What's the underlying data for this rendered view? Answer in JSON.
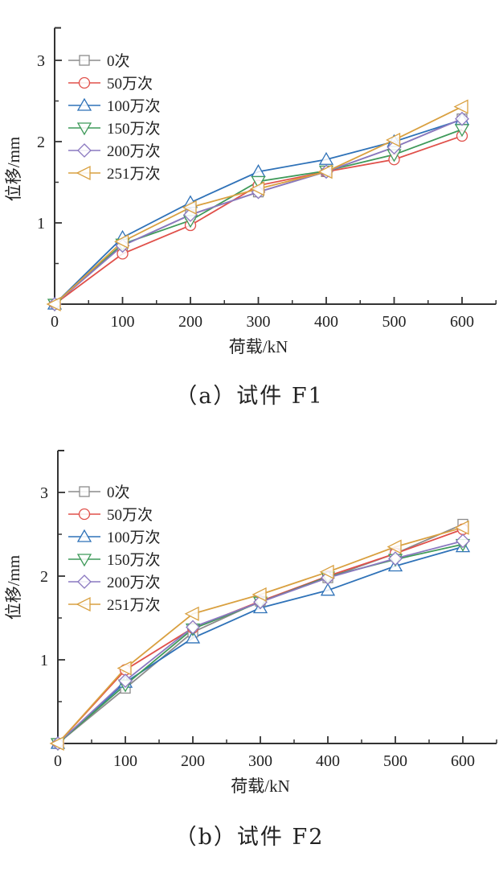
{
  "chart_data": [
    {
      "type": "line",
      "title": "",
      "caption": "（a）试件 F1",
      "xlabel": "荷载/kN",
      "ylabel": "位移/mm",
      "xlim": [
        0,
        650
      ],
      "ylim": [
        0,
        3.4
      ],
      "x_ticks": [
        0,
        100,
        200,
        300,
        400,
        500,
        600
      ],
      "x_tick_labels": [
        "0",
        "100",
        "200",
        "300",
        "400",
        "500",
        "600"
      ],
      "x_minor_ticks": [
        50,
        150,
        250,
        350,
        450,
        550,
        650
      ],
      "y_ticks": [
        1,
        2,
        3
      ],
      "y_tick_labels": [
        "1",
        "2",
        "3"
      ],
      "y_minor_ticks": [
        0.5,
        1.5,
        2.5
      ],
      "grid": false,
      "legend_position": "top-left",
      "x": [
        0,
        100,
        200,
        300,
        400,
        500,
        600
      ],
      "series": [
        {
          "name": "0次",
          "color": "#8c8c8c",
          "marker": "square",
          "values": [
            0,
            0.72,
            1.1,
            1.38,
            1.63,
            1.93,
            2.28
          ]
        },
        {
          "name": "50万次",
          "color": "#e0504a",
          "marker": "circle",
          "values": [
            0,
            0.62,
            0.97,
            1.46,
            1.63,
            1.78,
            2.07
          ]
        },
        {
          "name": "100万次",
          "color": "#2f72b8",
          "marker": "triangle-up",
          "values": [
            0,
            0.82,
            1.25,
            1.63,
            1.78,
            2.0,
            2.27
          ]
        },
        {
          "name": "150万次",
          "color": "#3f9a5a",
          "marker": "triangle-down",
          "values": [
            0,
            0.74,
            1.03,
            1.51,
            1.64,
            1.84,
            2.15
          ]
        },
        {
          "name": "200万次",
          "color": "#8a78c0",
          "marker": "diamond",
          "values": [
            0,
            0.72,
            1.1,
            1.38,
            1.63,
            1.93,
            2.28
          ]
        },
        {
          "name": "251万次",
          "color": "#d9a040",
          "marker": "triangle-left",
          "values": [
            0,
            0.77,
            1.19,
            1.42,
            1.63,
            2.02,
            2.43
          ]
        }
      ]
    },
    {
      "type": "line",
      "title": "",
      "caption": "（b）试件 F2",
      "xlabel": "荷载/kN",
      "ylabel": "位移/mm",
      "xlim": [
        0,
        650
      ],
      "ylim": [
        0,
        3.5
      ],
      "x_ticks": [
        0,
        100,
        200,
        300,
        400,
        500,
        600
      ],
      "x_tick_labels": [
        "0",
        "100",
        "200",
        "300",
        "400",
        "500",
        "600"
      ],
      "x_minor_ticks": [
        50,
        150,
        250,
        350,
        450,
        550,
        650
      ],
      "y_ticks": [
        1,
        2,
        3
      ],
      "y_tick_labels": [
        "1",
        "2",
        "3"
      ],
      "y_minor_ticks": [
        0.5,
        1.5,
        2.5
      ],
      "grid": false,
      "legend_position": "top-left",
      "x": [
        0,
        100,
        200,
        300,
        400,
        500,
        600
      ],
      "series": [
        {
          "name": "0次",
          "color": "#8c8c8c",
          "marker": "square",
          "values": [
            0,
            0.66,
            1.33,
            1.7,
            1.98,
            2.27,
            2.62
          ]
        },
        {
          "name": "50万次",
          "color": "#e0504a",
          "marker": "circle",
          "values": [
            0,
            0.88,
            1.38,
            1.7,
            2.0,
            2.27,
            2.56
          ]
        },
        {
          "name": "100万次",
          "color": "#2f72b8",
          "marker": "triangle-up",
          "values": [
            0,
            0.73,
            1.26,
            1.62,
            1.83,
            2.12,
            2.35
          ]
        },
        {
          "name": "150万次",
          "color": "#3f9a5a",
          "marker": "triangle-down",
          "values": [
            0,
            0.7,
            1.37,
            1.69,
            1.99,
            2.2,
            2.38
          ]
        },
        {
          "name": "200万次",
          "color": "#8a78c0",
          "marker": "diamond",
          "values": [
            0,
            0.75,
            1.39,
            1.69,
            1.98,
            2.21,
            2.42
          ]
        },
        {
          "name": "251万次",
          "color": "#d9a040",
          "marker": "triangle-left",
          "values": [
            0,
            0.9,
            1.55,
            1.78,
            2.05,
            2.35,
            2.58
          ]
        }
      ]
    }
  ]
}
